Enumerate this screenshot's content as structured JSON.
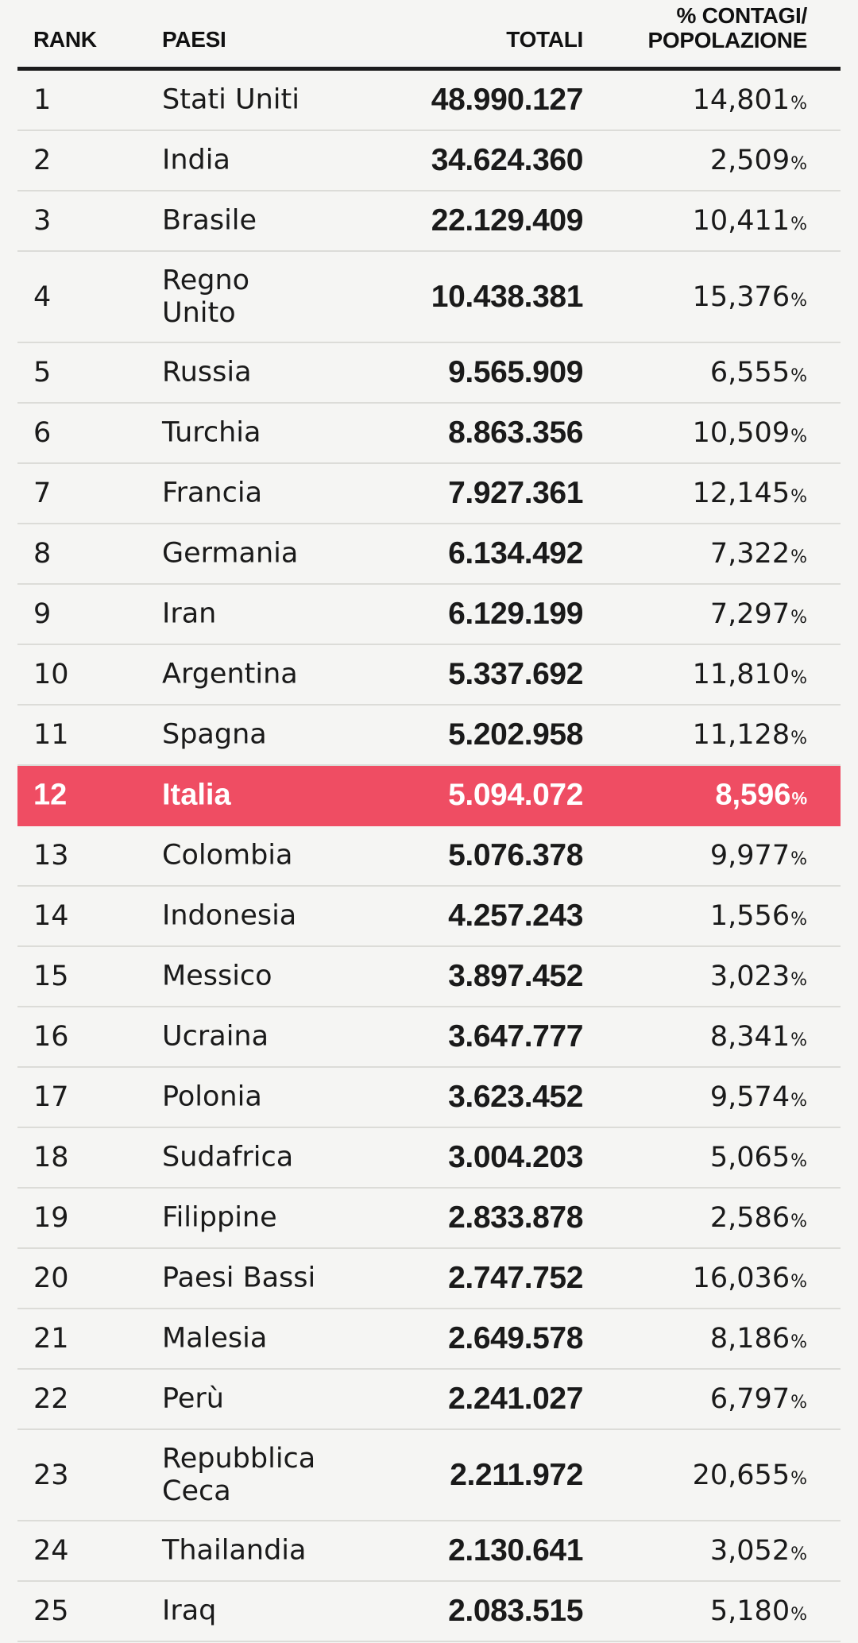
{
  "chart_data": {
    "type": "table",
    "columns": [
      "RANK",
      "PAESI",
      "TOTALI",
      "% CONTAGI/ POPOLAZIONE"
    ],
    "columns_display": {
      "rank": "RANK",
      "country": "PAESI",
      "total": "TOTALI",
      "percent_line1": "% CONTAGI/",
      "percent_line2": "POPOLAZIONE"
    },
    "percent_symbol": "%",
    "highlight_color": "#ef4d63",
    "highlighted_rank": "12",
    "rows": [
      {
        "rank": "1",
        "country": "Stati Uniti",
        "total": "48.990.127",
        "percent": "14,801"
      },
      {
        "rank": "2",
        "country": "India",
        "total": "34.624.360",
        "percent": "2,509"
      },
      {
        "rank": "3",
        "country": "Brasile",
        "total": "22.129.409",
        "percent": "10,411"
      },
      {
        "rank": "4",
        "country": "Regno Unito",
        "total": "10.438.381",
        "percent": "15,376"
      },
      {
        "rank": "5",
        "country": "Russia",
        "total": "9.565.909",
        "percent": "6,555"
      },
      {
        "rank": "6",
        "country": "Turchia",
        "total": "8.863.356",
        "percent": "10,509"
      },
      {
        "rank": "7",
        "country": "Francia",
        "total": "7.927.361",
        "percent": "12,145"
      },
      {
        "rank": "8",
        "country": "Germania",
        "total": "6.134.492",
        "percent": "7,322"
      },
      {
        "rank": "9",
        "country": "Iran",
        "total": "6.129.199",
        "percent": "7,297"
      },
      {
        "rank": "10",
        "country": "Argentina",
        "total": "5.337.692",
        "percent": "11,810"
      },
      {
        "rank": "11",
        "country": "Spagna",
        "total": "5.202.958",
        "percent": "11,128"
      },
      {
        "rank": "12",
        "country": "Italia",
        "total": "5.094.072",
        "percent": "8,596"
      },
      {
        "rank": "13",
        "country": "Colombia",
        "total": "5.076.378",
        "percent": "9,977"
      },
      {
        "rank": "14",
        "country": "Indonesia",
        "total": "4.257.243",
        "percent": "1,556"
      },
      {
        "rank": "15",
        "country": "Messico",
        "total": "3.897.452",
        "percent": "3,023"
      },
      {
        "rank": "16",
        "country": "Ucraina",
        "total": "3.647.777",
        "percent": "8,341"
      },
      {
        "rank": "17",
        "country": "Polonia",
        "total": "3.623.452",
        "percent": "9,574"
      },
      {
        "rank": "18",
        "country": "Sudafrica",
        "total": "3.004.203",
        "percent": "5,065"
      },
      {
        "rank": "19",
        "country": "Filippine",
        "total": "2.833.878",
        "percent": "2,586"
      },
      {
        "rank": "20",
        "country": "Paesi Bassi",
        "total": "2.747.752",
        "percent": "16,036"
      },
      {
        "rank": "21",
        "country": "Malesia",
        "total": "2.649.578",
        "percent": "8,186"
      },
      {
        "rank": "22",
        "country": "Perù",
        "total": "2.241.027",
        "percent": "6,797"
      },
      {
        "rank": "23",
        "country": "Repubblica Ceca",
        "total": "2.211.972",
        "percent": "20,655"
      },
      {
        "rank": "24",
        "country": "Thailandia",
        "total": "2.130.641",
        "percent": "3,052"
      },
      {
        "rank": "25",
        "country": "Iraq",
        "total": "2.083.515",
        "percent": "5,180"
      }
    ]
  }
}
